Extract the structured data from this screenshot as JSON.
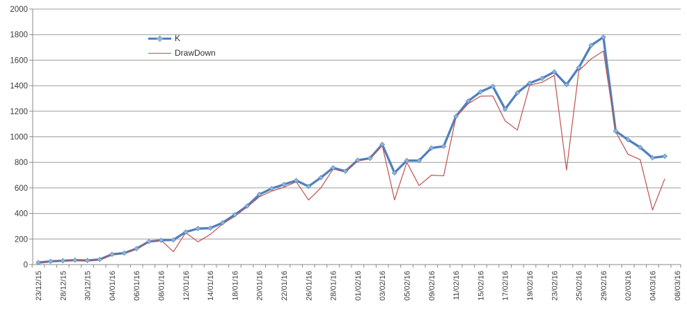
{
  "chart_data": {
    "type": "line",
    "title": "",
    "xlabel": "",
    "ylabel": "",
    "ylim": [
      0,
      2000
    ],
    "y_ticks": [
      0,
      200,
      400,
      600,
      800,
      1000,
      1200,
      1400,
      1600,
      1800,
      2000
    ],
    "grid": true,
    "legend_position": "inside-top-left",
    "points_per_label": 2,
    "x_tick_labels": [
      "23/12/15",
      "28/12/15",
      "30/12/15",
      "04/01/16",
      "06/01/16",
      "08/01/16",
      "12/01/16",
      "14/01/16",
      "18/01/16",
      "20/01/16",
      "22/01/16",
      "26/01/16",
      "28/01/16",
      "01/02/16",
      "03/02/16",
      "05/02/16",
      "09/02/16",
      "11/02/16",
      "15/02/16",
      "17/02/16",
      "19/02/16",
      "23/02/16",
      "25/02/16",
      "29/02/16",
      "02/03/16",
      "04/03/16",
      "08/03/16"
    ],
    "series": [
      {
        "name": "K",
        "color": "#4F81BD",
        "marker": "diamond",
        "marker_color": "#95B3D7",
        "line_width": 3.3,
        "values": [
          15,
          25,
          30,
          35,
          32,
          40,
          80,
          90,
          125,
          180,
          190,
          193,
          255,
          282,
          285,
          327,
          390,
          458,
          549,
          595,
          627,
          658,
          612,
          680,
          758,
          730,
          817,
          832,
          940,
          718,
          814,
          814,
          912,
          926,
          1160,
          1280,
          1352,
          1395,
          1217,
          1345,
          1420,
          1457,
          1508,
          1408,
          1542,
          1715,
          1780,
          1045,
          977,
          917,
          835,
          848
        ]
      },
      {
        "name": "DrawDown",
        "color": "#C0504D",
        "marker": "none",
        "line_width": 1.2,
        "values": [
          15,
          25,
          30,
          35,
          32,
          40,
          80,
          90,
          125,
          180,
          190,
          100,
          250,
          178,
          236,
          318,
          378,
          450,
          530,
          575,
          605,
          648,
          505,
          600,
          748,
          723,
          812,
          828,
          932,
          507,
          800,
          618,
          700,
          695,
          1155,
          1260,
          1318,
          1320,
          1125,
          1053,
          1405,
          1426,
          1481,
          740,
          1517,
          1610,
          1672,
          1040,
          863,
          821,
          427,
          672
        ]
      }
    ],
    "colors": {
      "grid": "#9c9c9c",
      "axis": "#8a8a8a",
      "tick_text": "#3b3b3b",
      "background": "#ffffff"
    }
  }
}
